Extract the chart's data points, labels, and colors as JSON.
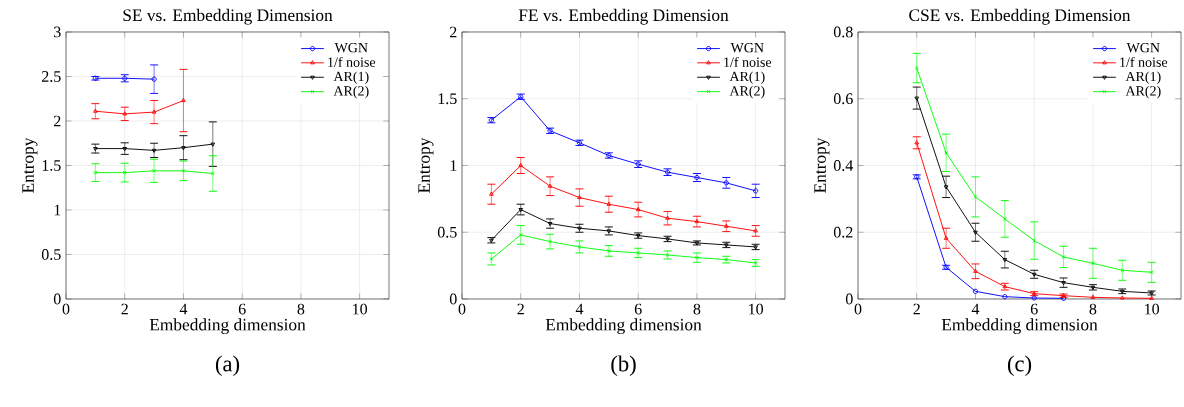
{
  "chart_data": [
    {
      "type": "line",
      "title": "SE vs. Embedding Dimension",
      "xlabel": "Embedding dimension",
      "ylabel": "Entropy",
      "xlim": [
        0,
        11
      ],
      "xticks": [
        0,
        2,
        4,
        6,
        8,
        10
      ],
      "ylim": [
        0,
        3
      ],
      "yticks": [
        0,
        0.5,
        1,
        1.5,
        2,
        2.5,
        3
      ],
      "grid": true,
      "legend": "top right",
      "line_style": "solid",
      "annotations": [
        "(a)"
      ],
      "series": [
        {
          "name": "WGN",
          "color": "#0000ff",
          "marker": "circle",
          "x": [
            1,
            2,
            3
          ],
          "values": [
            2.48,
            2.48,
            2.47
          ],
          "errors": [
            0.02,
            0.04,
            0.16
          ]
        },
        {
          "name": "1/f noise",
          "color": "#ff0000",
          "marker": "triangle",
          "x": [
            1,
            2,
            3,
            4
          ],
          "values": [
            2.11,
            2.08,
            2.1,
            2.23
          ],
          "errors": [
            0.085,
            0.075,
            0.13,
            0.35
          ]
        },
        {
          "name": "AR(1)",
          "color": "#000000",
          "marker": "triangle-down",
          "x": [
            1,
            2,
            3,
            4,
            5
          ],
          "values": [
            1.69,
            1.69,
            1.67,
            1.7,
            1.74
          ],
          "errors": [
            0.05,
            0.065,
            0.08,
            0.135,
            0.25
          ]
        },
        {
          "name": "AR(2)",
          "color": "#00ff00",
          "marker": "cross",
          "x": [
            1,
            2,
            3,
            4,
            5
          ],
          "values": [
            1.42,
            1.42,
            1.44,
            1.44,
            1.41
          ],
          "errors": [
            0.1,
            0.105,
            0.13,
            0.11,
            0.2
          ]
        }
      ]
    },
    {
      "type": "line",
      "title": "FE vs. Embedding Dimension",
      "xlabel": "Embedding dimension",
      "ylabel": "Entropy",
      "xlim": [
        0,
        11
      ],
      "xticks": [
        0,
        2,
        4,
        6,
        8,
        10
      ],
      "ylim": [
        0,
        2
      ],
      "yticks": [
        0,
        0.5,
        1,
        1.5,
        2
      ],
      "grid": true,
      "legend": "top right",
      "line_style": "solid",
      "annotations": [
        "(b)"
      ],
      "series": [
        {
          "name": "WGN",
          "color": "#0000ff",
          "marker": "circle",
          "x": [
            1,
            2,
            3,
            4,
            5,
            6,
            7,
            8,
            9,
            10
          ],
          "values": [
            1.34,
            1.515,
            1.26,
            1.17,
            1.075,
            1.01,
            0.95,
            0.91,
            0.87,
            0.81
          ],
          "errors": [
            0.02,
            0.02,
            0.02,
            0.02,
            0.02,
            0.025,
            0.025,
            0.03,
            0.04,
            0.05
          ]
        },
        {
          "name": "1/f noise",
          "color": "#ff0000",
          "marker": "triangle",
          "x": [
            1,
            2,
            3,
            4,
            5,
            6,
            7,
            8,
            9,
            10
          ],
          "values": [
            0.785,
            1.0,
            0.845,
            0.76,
            0.71,
            0.67,
            0.605,
            0.58,
            0.545,
            0.51
          ],
          "errors": [
            0.075,
            0.06,
            0.07,
            0.065,
            0.06,
            0.055,
            0.05,
            0.04,
            0.04,
            0.04
          ]
        },
        {
          "name": "AR(1)",
          "color": "#000000",
          "marker": "triangle-down",
          "x": [
            1,
            2,
            3,
            4,
            5,
            6,
            7,
            8,
            9,
            10
          ],
          "values": [
            0.44,
            0.67,
            0.565,
            0.53,
            0.51,
            0.475,
            0.45,
            0.42,
            0.405,
            0.39
          ],
          "errors": [
            0.02,
            0.04,
            0.035,
            0.03,
            0.03,
            0.02,
            0.02,
            0.015,
            0.02,
            0.02
          ]
        },
        {
          "name": "AR(2)",
          "color": "#00ff00",
          "marker": "cross",
          "x": [
            1,
            2,
            3,
            4,
            5,
            6,
            7,
            8,
            9,
            10
          ],
          "values": [
            0.3,
            0.48,
            0.43,
            0.39,
            0.36,
            0.345,
            0.33,
            0.31,
            0.295,
            0.27
          ],
          "errors": [
            0.045,
            0.07,
            0.055,
            0.045,
            0.04,
            0.035,
            0.03,
            0.035,
            0.025,
            0.025
          ]
        }
      ]
    },
    {
      "type": "line",
      "title": "CSE vs. Embedding Dimension",
      "xlabel": "Embedding dimension",
      "ylabel": "Entropy",
      "xlim": [
        0,
        11
      ],
      "xticks": [
        0,
        2,
        4,
        6,
        8,
        10
      ],
      "ylim": [
        0,
        0.8
      ],
      "yticks": [
        0,
        0.2,
        0.4,
        0.6,
        0.8
      ],
      "grid": true,
      "legend": "top right",
      "line_style": "solid",
      "annotations": [
        "(c)"
      ],
      "series": [
        {
          "name": "WGN",
          "color": "#0000ff",
          "marker": "circle",
          "x": [
            2,
            3,
            4,
            5,
            6,
            7
          ],
          "values": [
            0.366,
            0.095,
            0.023,
            0.007,
            0.003,
            0.002
          ],
          "errors": [
            0.006,
            0.006,
            null,
            null,
            null,
            null
          ]
        },
        {
          "name": "1/f noise",
          "color": "#ff0000",
          "marker": "triangle",
          "x": [
            2,
            3,
            4,
            5,
            6,
            7,
            8,
            9,
            10
          ],
          "values": [
            0.468,
            0.182,
            0.083,
            0.037,
            0.016,
            0.01,
            0.005,
            0.003,
            0.002
          ],
          "errors": [
            0.018,
            0.03,
            0.022,
            0.01,
            0.006,
            0.005,
            null,
            null,
            null
          ]
        },
        {
          "name": "AR(1)",
          "color": "#000000",
          "marker": "triangle-down",
          "x": [
            2,
            3,
            4,
            5,
            6,
            7,
            8,
            9,
            10
          ],
          "values": [
            0.602,
            0.336,
            0.2,
            0.118,
            0.074,
            0.049,
            0.035,
            0.023,
            0.018
          ],
          "errors": [
            0.033,
            0.032,
            0.027,
            0.025,
            0.012,
            0.014,
            0.008,
            0.007,
            0.006
          ]
        },
        {
          "name": "AR(2)",
          "color": "#00ff00",
          "marker": "cross",
          "x": [
            2,
            3,
            4,
            5,
            6,
            7,
            8,
            9,
            10
          ],
          "values": [
            0.692,
            0.438,
            0.306,
            0.24,
            0.175,
            0.126,
            0.107,
            0.086,
            0.08
          ],
          "errors": [
            0.044,
            0.056,
            0.06,
            0.055,
            0.056,
            0.032,
            0.045,
            0.03,
            0.03
          ]
        }
      ]
    }
  ]
}
